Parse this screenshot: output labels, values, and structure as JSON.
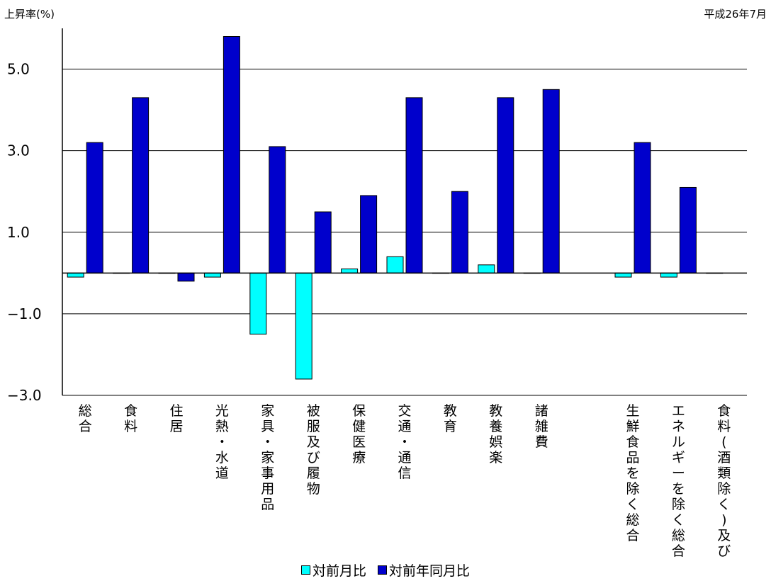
{
  "chart_data": {
    "type": "bar",
    "ylabel": "上昇率(%)",
    "date_label": "平成26年7月",
    "ylim": [
      -3.0,
      6.0
    ],
    "yticks": [
      -3.0,
      -1.0,
      1.0,
      3.0,
      5.0
    ],
    "ytick_labels": [
      "−3.0",
      "−1.0",
      "1.0",
      "3.0",
      "5.0"
    ],
    "grid": true,
    "legend_position": "bottom",
    "categories": [
      "総合",
      "食料",
      "住居",
      "光熱・水道",
      "家具・家事用品",
      "被服及び履物",
      "保健医療",
      "交通・通信",
      "教育",
      "教養娯楽",
      "諸雑費",
      "",
      "生鮮食品を除く総合",
      "エネルギーを除く総合",
      "食料(酒類除く)及び"
    ],
    "series": [
      {
        "name": "対前月比",
        "color": "#00FFFF",
        "values": [
          -0.1,
          0.0,
          0.0,
          -0.1,
          -1.5,
          -2.6,
          0.1,
          0.4,
          0.0,
          0.2,
          0.0,
          null,
          -0.1,
          -0.1,
          0.0
        ]
      },
      {
        "name": "対前年同月比",
        "color": "#0000CC",
        "values": [
          3.2,
          4.3,
          -0.2,
          5.8,
          3.1,
          1.5,
          1.9,
          4.3,
          2.0,
          4.3,
          4.5,
          null,
          3.2,
          2.1,
          null
        ]
      }
    ]
  }
}
